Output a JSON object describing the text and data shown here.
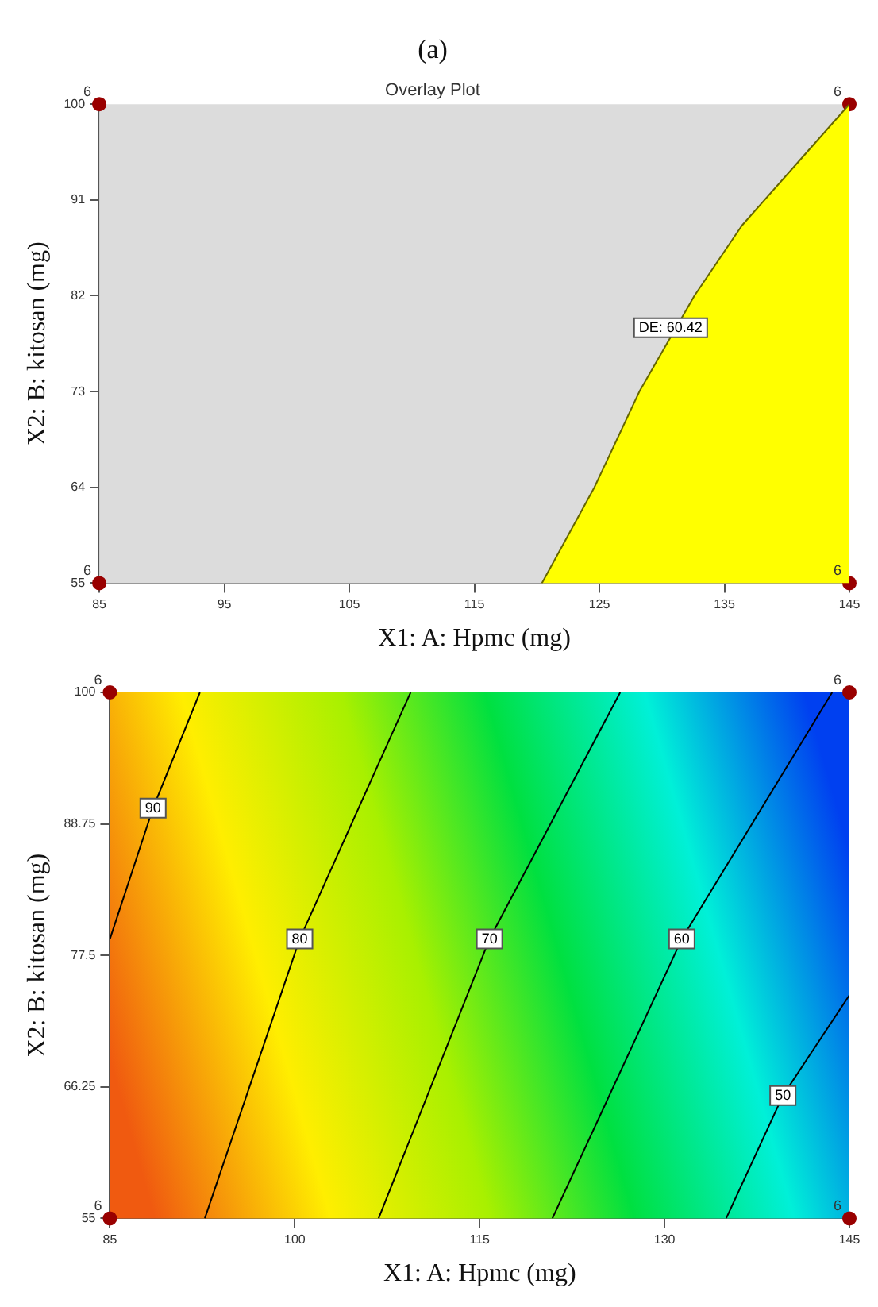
{
  "chart_data": [
    {
      "type": "area",
      "title": "(a)",
      "subtitle": "Overlay Plot",
      "xlabel": "X1: A: Hpmc (mg)",
      "ylabel": "X2: B: kitosan (mg)",
      "xlim": [
        85,
        145
      ],
      "xticks": [
        85,
        95,
        105,
        115,
        125,
        135,
        145
      ],
      "ylim": [
        55,
        100
      ],
      "yticks": [
        55,
        64,
        73,
        82,
        91,
        100
      ],
      "annotations": [
        {
          "text": "DE: 60.42",
          "x": 130.7,
          "y": 79
        },
        {
          "text": "6",
          "x": 85,
          "y": 55
        },
        {
          "text": "6",
          "x": 85,
          "y": 100
        },
        {
          "text": "6",
          "x": 145,
          "y": 55
        },
        {
          "text": "6",
          "x": 145,
          "y": 100
        }
      ],
      "series": [
        {
          "color": "#ffff00",
          "x": [
            120.4,
            124.6,
            128.2,
            132.6,
            136.4,
            145
          ],
          "values": [
            55,
            64,
            73,
            82,
            88.6,
            100
          ]
        },
        {
          "type": "scatter",
          "color": "#990000",
          "marker": "circle",
          "x": [
            85,
            85,
            145,
            145
          ],
          "values": [
            55,
            100,
            55,
            100
          ]
        }
      ]
    },
    {
      "type": "line",
      "xlabel": "X1: A: Hpmc (mg)",
      "ylabel": "X2: B: kitosan (mg)",
      "xlim": [
        85,
        145
      ],
      "xticks": [
        85,
        100,
        115,
        130,
        145
      ],
      "ylim": [
        55,
        100
      ],
      "yticks": [
        55,
        66.25,
        77.5,
        88.75,
        100
      ],
      "annotations": [
        {
          "text": "90",
          "x": 88.5,
          "y": 90.1
        },
        {
          "text": "80",
          "x": 100.4,
          "y": 78.9
        },
        {
          "text": "70",
          "x": 115.8,
          "y": 78.9
        },
        {
          "text": "60",
          "x": 131.4,
          "y": 78.9
        },
        {
          "text": "50",
          "x": 139.6,
          "y": 65.5
        },
        {
          "text": "6",
          "x": 85,
          "y": 55
        },
        {
          "text": "6",
          "x": 85,
          "y": 100
        },
        {
          "text": "6",
          "x": 145,
          "y": 55
        },
        {
          "text": "6",
          "x": 145,
          "y": 100
        }
      ],
      "series": [
        {
          "color": "#000000",
          "x": [
            92.3,
            88.5,
            85
          ],
          "values": [
            100,
            90.1,
            78.9
          ]
        },
        {
          "color": "#000000",
          "x": [
            109.4,
            100.4,
            92.7
          ],
          "values": [
            100,
            78.9,
            55
          ]
        },
        {
          "color": "#000000",
          "x": [
            126.4,
            115.8,
            106.8
          ],
          "values": [
            100,
            78.9,
            55
          ]
        },
        {
          "color": "#000000",
          "x": [
            143.6,
            131.4,
            120.9
          ],
          "values": [
            100,
            78.9,
            55
          ]
        },
        {
          "color": "#000000",
          "x": [
            145,
            139.6,
            135
          ],
          "values": [
            74.1,
            65.5,
            55
          ]
        },
        {
          "type": "scatter",
          "color": "#990000",
          "marker": "circle",
          "x": [
            85,
            85,
            145,
            145
          ],
          "values": [
            55,
            100,
            55,
            100
          ]
        }
      ]
    }
  ]
}
